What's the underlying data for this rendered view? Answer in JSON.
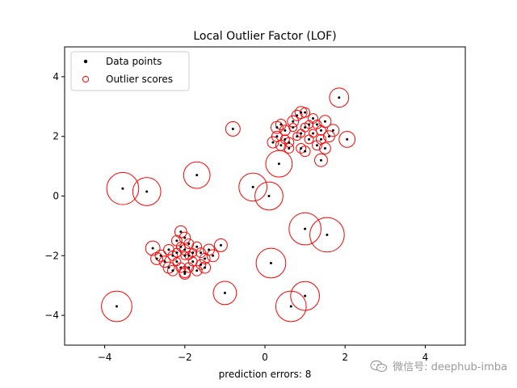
{
  "chart_data": {
    "type": "scatter",
    "title": "Local Outlier Factor (LOF)",
    "xlabel": "prediction errors: 8",
    "ylabel": "",
    "xlim": [
      -5,
      5
    ],
    "ylim": [
      -5,
      5
    ],
    "xticks": [
      -4,
      -2,
      0,
      2,
      4
    ],
    "yticks": [
      -4,
      -2,
      0,
      2,
      4
    ],
    "xtick_labels": [
      "−4",
      "−2",
      "0",
      "2",
      "4"
    ],
    "ytick_labels": [
      "−4",
      "−2",
      "0",
      "2",
      "4"
    ],
    "grid": false,
    "legend_position": "upper-left",
    "colors": {
      "points": "#000000",
      "circles": "#ff0000"
    },
    "series": [
      {
        "name": "Data points",
        "marker": "filled-dot"
      },
      {
        "name": "Outlier scores",
        "marker": "hollow-circle"
      }
    ],
    "points": [
      {
        "x": 0.9,
        "y": 2.8,
        "s": 0.15
      },
      {
        "x": 1.2,
        "y": 2.6,
        "s": 0.12
      },
      {
        "x": 0.7,
        "y": 2.5,
        "s": 0.14
      },
      {
        "x": 1.0,
        "y": 2.3,
        "s": 0.11
      },
      {
        "x": 0.5,
        "y": 2.2,
        "s": 0.13
      },
      {
        "x": 1.4,
        "y": 2.2,
        "s": 0.12
      },
      {
        "x": 0.8,
        "y": 2.0,
        "s": 0.1
      },
      {
        "x": 1.1,
        "y": 1.9,
        "s": 0.11
      },
      {
        "x": 0.3,
        "y": 2.0,
        "s": 0.13
      },
      {
        "x": 0.6,
        "y": 1.8,
        "s": 0.12
      },
      {
        "x": 1.3,
        "y": 1.7,
        "s": 0.12
      },
      {
        "x": 0.9,
        "y": 1.6,
        "s": 0.12
      },
      {
        "x": 0.4,
        "y": 1.7,
        "s": 0.13
      },
      {
        "x": 1.6,
        "y": 2.0,
        "s": 0.14
      },
      {
        "x": 1.5,
        "y": 2.5,
        "s": 0.15
      },
      {
        "x": 0.2,
        "y": 1.8,
        "s": 0.14
      },
      {
        "x": 1.2,
        "y": 2.1,
        "s": 0.1
      },
      {
        "x": 0.7,
        "y": 2.3,
        "s": 0.1
      },
      {
        "x": 1.0,
        "y": 1.5,
        "s": 0.13
      },
      {
        "x": 0.6,
        "y": 1.6,
        "s": 0.12
      },
      {
        "x": 1.7,
        "y": 2.2,
        "s": 0.15
      },
      {
        "x": 0.8,
        "y": 2.7,
        "s": 0.13
      },
      {
        "x": 1.1,
        "y": 2.4,
        "s": 0.1
      },
      {
        "x": 0.4,
        "y": 2.4,
        "s": 0.13
      },
      {
        "x": 1.4,
        "y": 1.9,
        "s": 0.12
      },
      {
        "x": 0.3,
        "y": 2.3,
        "s": 0.15
      },
      {
        "x": 1.5,
        "y": 1.6,
        "s": 0.14
      },
      {
        "x": 0.9,
        "y": 2.1,
        "s": 0.1
      },
      {
        "x": 1.3,
        "y": 2.4,
        "s": 0.11
      },
      {
        "x": 0.5,
        "y": 1.9,
        "s": 0.11
      },
      {
        "x": -0.8,
        "y": 2.25,
        "s": 0.18
      },
      {
        "x": 1.4,
        "y": 1.2,
        "s": 0.16
      },
      {
        "x": 1.0,
        "y": 2.8,
        "s": 0.12
      },
      {
        "x": -2.0,
        "y": -1.8,
        "s": 0.13
      },
      {
        "x": -2.3,
        "y": -2.0,
        "s": 0.12
      },
      {
        "x": -1.8,
        "y": -2.2,
        "s": 0.11
      },
      {
        "x": -2.1,
        "y": -2.4,
        "s": 0.12
      },
      {
        "x": -1.6,
        "y": -1.9,
        "s": 0.12
      },
      {
        "x": -2.5,
        "y": -2.2,
        "s": 0.14
      },
      {
        "x": -1.9,
        "y": -1.6,
        "s": 0.12
      },
      {
        "x": -2.2,
        "y": -1.5,
        "s": 0.13
      },
      {
        "x": -1.7,
        "y": -2.5,
        "s": 0.13
      },
      {
        "x": -2.4,
        "y": -1.8,
        "s": 0.13
      },
      {
        "x": -2.0,
        "y": -2.6,
        "s": 0.14
      },
      {
        "x": -1.5,
        "y": -2.1,
        "s": 0.13
      },
      {
        "x": -2.6,
        "y": -2.0,
        "s": 0.14
      },
      {
        "x": -1.9,
        "y": -2.0,
        "s": 0.1
      },
      {
        "x": -2.2,
        "y": -2.2,
        "s": 0.1
      },
      {
        "x": -1.7,
        "y": -1.7,
        "s": 0.12
      },
      {
        "x": -2.1,
        "y": -1.2,
        "s": 0.15
      },
      {
        "x": -1.4,
        "y": -1.8,
        "s": 0.14
      },
      {
        "x": -2.3,
        "y": -2.5,
        "s": 0.13
      },
      {
        "x": -1.6,
        "y": -2.3,
        "s": 0.12
      },
      {
        "x": -2.0,
        "y": -2.0,
        "s": 0.1
      },
      {
        "x": -1.8,
        "y": -1.9,
        "s": 0.1
      },
      {
        "x": -2.4,
        "y": -2.4,
        "s": 0.14
      },
      {
        "x": -1.5,
        "y": -2.4,
        "s": 0.14
      },
      {
        "x": -2.1,
        "y": -1.7,
        "s": 0.11
      },
      {
        "x": -1.9,
        "y": -2.4,
        "s": 0.12
      },
      {
        "x": -2.7,
        "y": -2.1,
        "s": 0.15
      },
      {
        "x": -1.3,
        "y": -2.0,
        "s": 0.15
      },
      {
        "x": -2.0,
        "y": -1.4,
        "s": 0.14
      },
      {
        "x": -2.2,
        "y": -1.9,
        "s": 0.11
      },
      {
        "x": -2.8,
        "y": -1.75,
        "s": 0.18
      },
      {
        "x": -1.1,
        "y": -1.65,
        "s": 0.16
      },
      {
        "x": -2.0,
        "y": -2.55,
        "s": 0.14
      },
      {
        "x": 1.85,
        "y": 3.3,
        "s": 0.24
      },
      {
        "x": 2.05,
        "y": 1.9,
        "s": 0.2
      },
      {
        "x": -3.55,
        "y": 0.25,
        "s": 0.4
      },
      {
        "x": -2.95,
        "y": 0.15,
        "s": 0.35
      },
      {
        "x": -1.7,
        "y": 0.7,
        "s": 0.33
      },
      {
        "x": 0.35,
        "y": 1.08,
        "s": 0.33
      },
      {
        "x": -0.3,
        "y": 0.3,
        "s": 0.35
      },
      {
        "x": 0.1,
        "y": 0.0,
        "s": 0.35
      },
      {
        "x": 1.0,
        "y": -1.1,
        "s": 0.4
      },
      {
        "x": 1.55,
        "y": -1.3,
        "s": 0.43
      },
      {
        "x": 0.15,
        "y": -2.25,
        "s": 0.37
      },
      {
        "x": -1.0,
        "y": -3.25,
        "s": 0.29
      },
      {
        "x": -3.7,
        "y": -3.7,
        "s": 0.38
      },
      {
        "x": 0.65,
        "y": -3.7,
        "s": 0.38
      },
      {
        "x": 1.0,
        "y": -3.35,
        "s": 0.36
      }
    ]
  },
  "watermark": {
    "text": "微信号: deephub-imba",
    "icon": "wechat-icon"
  }
}
